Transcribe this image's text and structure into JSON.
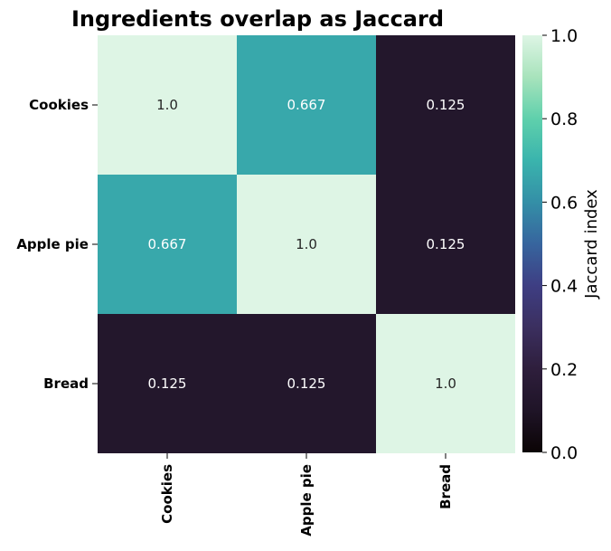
{
  "chart_data": {
    "type": "heatmap",
    "title": "Ingredients overlap as Jaccard",
    "rows": [
      "Cookies",
      "Apple pie",
      "Bread"
    ],
    "columns": [
      "Cookies",
      "Apple pie",
      "Bread"
    ],
    "values": [
      [
        1.0,
        0.667,
        0.125
      ],
      [
        0.667,
        1.0,
        0.125
      ],
      [
        0.125,
        0.125,
        1.0
      ]
    ],
    "cell_labels": [
      [
        "1.0",
        "0.667",
        "0.125"
      ],
      [
        "0.667",
        "1.0",
        "0.125"
      ],
      [
        "0.125",
        "0.125",
        "1.0"
      ]
    ],
    "colorbar": {
      "label": "Jaccard index",
      "range": [
        0.0,
        1.0
      ],
      "ticks": [
        "0.0",
        "0.2",
        "0.4",
        "0.6",
        "0.8",
        "1.0"
      ],
      "colormap": "mako",
      "colors": {
        "low": "#0b0405",
        "high": "#def5e5",
        "value_0.125": "#281b31",
        "value_0.667": "#3aaaae"
      }
    }
  }
}
